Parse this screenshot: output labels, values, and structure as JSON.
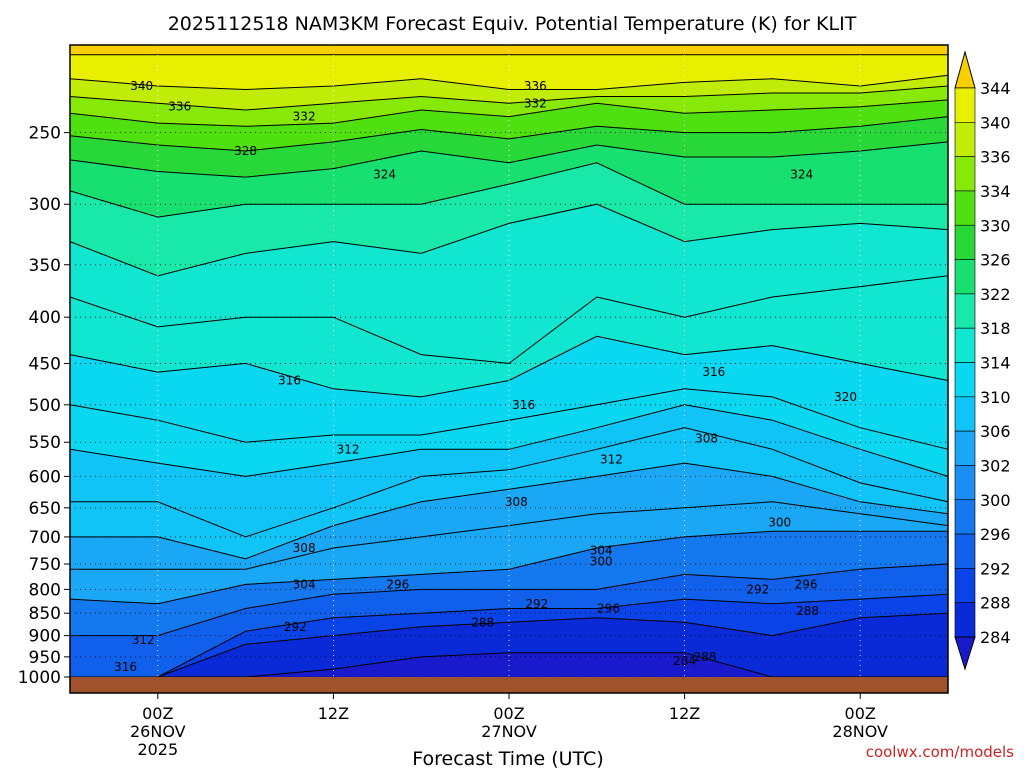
{
  "chart_data": {
    "type": "heatmap",
    "title": "2025112518 NAM3KM Forecast Equiv. Potential Temperature (K) for KLIT",
    "xlabel": "Forecast Time (UTC)",
    "ylabel": "",
    "y_scale": "log-pressure",
    "y_ticks": [
      250,
      300,
      350,
      400,
      450,
      500,
      550,
      600,
      650,
      700,
      750,
      800,
      850,
      900,
      950,
      1000
    ],
    "ylim": [
      200,
      1000
    ],
    "xlim_hours": [
      -6,
      54
    ],
    "x_ticks": [
      {
        "hour": 0,
        "lines": [
          "00Z",
          "26NOV",
          "2025"
        ]
      },
      {
        "hour": 12,
        "lines": [
          "12Z"
        ]
      },
      {
        "hour": 24,
        "lines": [
          "00Z",
          "27NOV"
        ]
      },
      {
        "hour": 36,
        "lines": [
          "12Z"
        ]
      },
      {
        "hour": 48,
        "lines": [
          "00Z",
          "28NOV"
        ]
      }
    ],
    "grid": true,
    "colorbar": {
      "levels": [
        284,
        288,
        292,
        296,
        300,
        302,
        306,
        310,
        314,
        318,
        322,
        326,
        330,
        334,
        336,
        340,
        344
      ],
      "colors": [
        "#1a1acd",
        "#0a2ad8",
        "#0a44e8",
        "#1060ec",
        "#1478ee",
        "#1a8ef2",
        "#1aa8f6",
        "#10c4f8",
        "#0ad8f0",
        "#10e6d0",
        "#18e8a8",
        "#18e070",
        "#28d838",
        "#50e010",
        "#88e808",
        "#c0ec08",
        "#e8f000",
        "#f8d000"
      ]
    },
    "series": [
      {
        "theta_e": 344,
        "p": [
          205,
          205,
          205,
          205,
          205,
          205,
          205,
          205,
          205,
          205,
          205
        ]
      },
      {
        "theta_e": 340,
        "p": [
          218,
          222,
          224,
          222,
          218,
          224,
          224,
          220,
          218,
          222,
          216
        ]
      },
      {
        "theta_e": 336,
        "p": [
          228,
          232,
          236,
          232,
          228,
          232,
          228,
          228,
          226,
          226,
          222
        ]
      },
      {
        "theta_e": 332,
        "p": [
          238,
          244,
          246,
          244,
          236,
          240,
          232,
          238,
          236,
          234,
          230
        ]
      },
      {
        "theta_e": 328,
        "p": [
          252,
          258,
          262,
          256,
          248,
          254,
          246,
          250,
          250,
          246,
          240
        ]
      },
      {
        "theta_e": 324,
        "p": [
          268,
          276,
          280,
          274,
          262,
          270,
          258,
          266,
          266,
          262,
          256
        ]
      },
      {
        "theta_e": 320,
        "p": [
          290,
          310,
          300,
          300,
          300,
          285,
          270,
          300,
          300,
          300,
          300
        ]
      },
      {
        "theta_e": 318,
        "p": [
          330,
          360,
          340,
          330,
          340,
          315,
          300,
          330,
          320,
          315,
          320
        ]
      },
      {
        "theta_e": 316,
        "p": [
          380,
          410,
          400,
          400,
          440,
          450,
          380,
          400,
          380,
          370,
          360
        ]
      },
      {
        "theta_e": 314,
        "p": [
          440,
          460,
          450,
          480,
          490,
          470,
          420,
          440,
          430,
          450,
          470
        ]
      },
      {
        "theta_e": 312,
        "p": [
          500,
          520,
          550,
          540,
          540,
          520,
          500,
          480,
          490,
          530,
          560
        ]
      },
      {
        "theta_e": 310,
        "p": [
          560,
          580,
          600,
          580,
          560,
          560,
          530,
          500,
          520,
          560,
          600
        ]
      },
      {
        "theta_e": 308,
        "p": [
          640,
          640,
          700,
          650,
          600,
          590,
          560,
          530,
          560,
          610,
          640
        ]
      },
      {
        "theta_e": 306,
        "p": [
          700,
          700,
          740,
          680,
          640,
          620,
          600,
          580,
          600,
          640,
          660
        ]
      },
      {
        "theta_e": 304,
        "p": [
          760,
          760,
          760,
          720,
          700,
          680,
          660,
          650,
          640,
          660,
          680
        ]
      },
      {
        "theta_e": 300,
        "p": [
          820,
          830,
          790,
          780,
          770,
          760,
          720,
          700,
          690,
          690,
          690
        ]
      },
      {
        "theta_e": 296,
        "p": [
          900,
          900,
          840,
          810,
          800,
          800,
          800,
          770,
          780,
          760,
          750
        ]
      },
      {
        "theta_e": 292,
        "p": [
          1000,
          1000,
          890,
          860,
          850,
          840,
          840,
          820,
          830,
          820,
          810
        ]
      },
      {
        "theta_e": 288,
        "p": [
          1000,
          1000,
          920,
          900,
          880,
          870,
          860,
          870,
          900,
          860,
          850
        ]
      },
      {
        "theta_e": 284,
        "p": [
          1000,
          1000,
          1000,
          980,
          950,
          940,
          940,
          940,
          1000,
          1000,
          1000
        ]
      }
    ],
    "series_hours": [
      -6,
      0,
      6,
      12,
      18,
      24,
      30,
      36,
      42,
      48,
      54
    ],
    "contour_labels": [
      {
        "text": "340",
        "hour": -1.1,
        "p": 222
      },
      {
        "text": "336",
        "hour": 1.5,
        "p": 234
      },
      {
        "text": "332",
        "hour": 10,
        "p": 240
      },
      {
        "text": "328",
        "hour": 6,
        "p": 262
      },
      {
        "text": "324",
        "hour": 15.5,
        "p": 278
      },
      {
        "text": "336",
        "hour": 25.8,
        "p": 222
      },
      {
        "text": "332",
        "hour": 25.8,
        "p": 232
      },
      {
        "text": "324",
        "hour": 44,
        "p": 278
      },
      {
        "text": "316",
        "hour": 9,
        "p": 470
      },
      {
        "text": "316",
        "hour": 25,
        "p": 500
      },
      {
        "text": "316",
        "hour": 38,
        "p": 460
      },
      {
        "text": "320",
        "hour": 47,
        "p": 490
      },
      {
        "text": "312",
        "hour": 13,
        "p": 560
      },
      {
        "text": "312",
        "hour": 31,
        "p": 575
      },
      {
        "text": "308",
        "hour": 37.5,
        "p": 545
      },
      {
        "text": "308",
        "hour": 24.5,
        "p": 640
      },
      {
        "text": "300",
        "hour": 42.5,
        "p": 675
      },
      {
        "text": "308",
        "hour": 10,
        "p": 720
      },
      {
        "text": "304",
        "hour": 30.3,
        "p": 725
      },
      {
        "text": "300",
        "hour": 30.3,
        "p": 745
      },
      {
        "text": "304",
        "hour": 10,
        "p": 790
      },
      {
        "text": "296",
        "hour": 16.4,
        "p": 790
      },
      {
        "text": "296",
        "hour": 44.3,
        "p": 790
      },
      {
        "text": "292",
        "hour": 41,
        "p": 800
      },
      {
        "text": "292",
        "hour": 25.9,
        "p": 830
      },
      {
        "text": "296",
        "hour": 30.8,
        "p": 840
      },
      {
        "text": "288",
        "hour": 44.4,
        "p": 845
      },
      {
        "text": "288",
        "hour": 22.2,
        "p": 870
      },
      {
        "text": "292",
        "hour": 9.4,
        "p": 880
      },
      {
        "text": "312",
        "hour": -1,
        "p": 910
      },
      {
        "text": "288",
        "hour": 37.4,
        "p": 950
      },
      {
        "text": "316",
        "hour": -2.2,
        "p": 975
      },
      {
        "text": "284",
        "hour": 36,
        "p": 960
      }
    ],
    "credit": "coolwx.com/models"
  }
}
